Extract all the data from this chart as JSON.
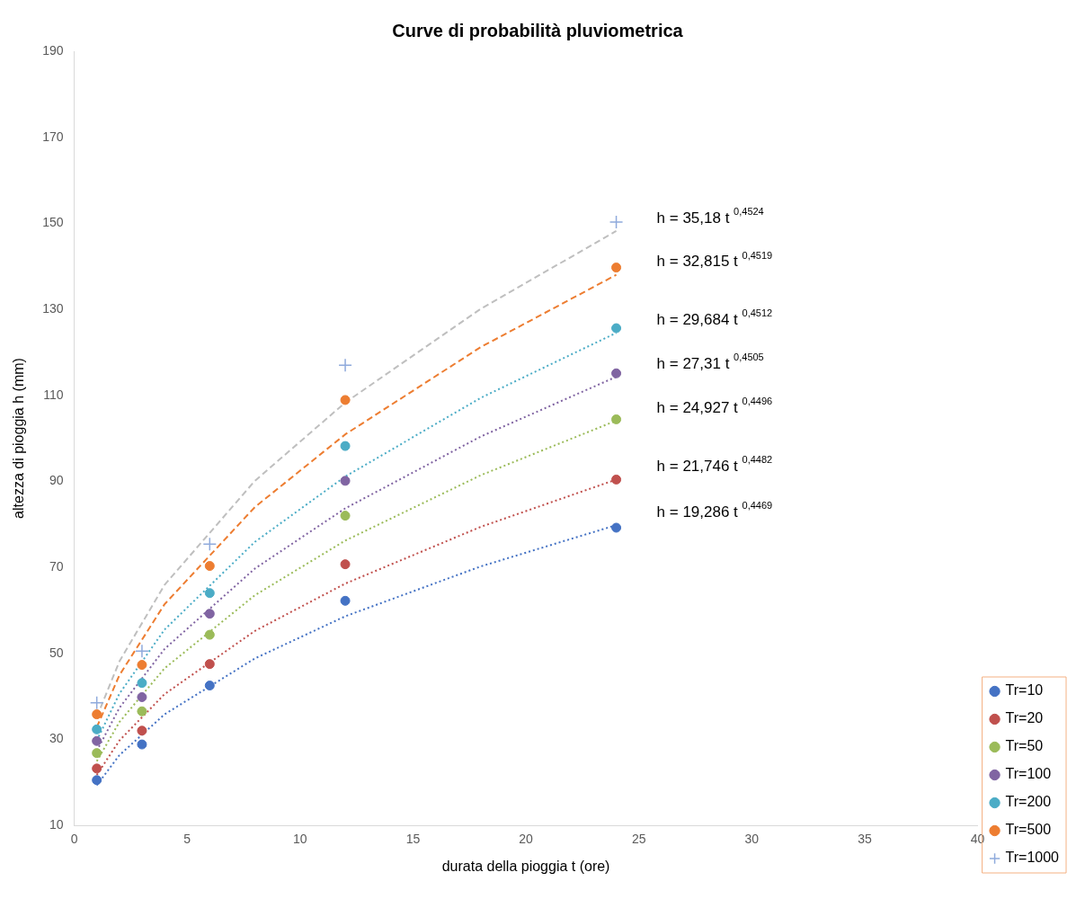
{
  "chart_data": {
    "type": "scatter",
    "title": "Curve di probabilità pluviometrica",
    "xlabel": "durata della pioggia t (ore)",
    "ylabel": "altezza di pioggia h (mm)",
    "x": [
      1,
      3,
      6,
      12,
      24
    ],
    "xlim": [
      0,
      40
    ],
    "xticks": [
      0,
      5,
      10,
      15,
      20,
      25,
      30,
      35,
      40
    ],
    "ylim": [
      10,
      190
    ],
    "yticks": [
      10,
      30,
      50,
      70,
      90,
      110,
      130,
      150,
      170,
      190
    ],
    "grid": false,
    "legend": "bottom right",
    "marker": "circle",
    "series": [
      {
        "name": "Tr=10",
        "color": "#4472c4",
        "values": [
          20.5,
          28.8,
          42.5,
          62.2,
          79.2
        ]
      },
      {
        "name": "Tr=20",
        "color": "#c0504d",
        "values": [
          23.2,
          32.0,
          47.5,
          70.7,
          90.4
        ]
      },
      {
        "name": "Tr=50",
        "color": "#9bbb59",
        "values": [
          26.8,
          36.5,
          54.3,
          82.0,
          104.4
        ]
      },
      {
        "name": "Tr=100",
        "color": "#8064a2",
        "values": [
          29.6,
          39.8,
          59.2,
          90.1,
          115.1
        ]
      },
      {
        "name": "Tr=200",
        "color": "#4bacc6",
        "values": [
          32.3,
          43.1,
          64.0,
          98.2,
          125.6
        ]
      },
      {
        "name": "Tr=500",
        "color": "#ed7d31",
        "values": [
          35.8,
          47.3,
          70.3,
          108.9,
          139.7
        ]
      },
      {
        "name": "Tr=1000",
        "color": "#8faadc",
        "marker": "cross",
        "values": [
          38.5,
          50.5,
          75.4,
          117.0,
          150.3
        ]
      },
      {
        "type": "line",
        "color": "#4472c4",
        "line_style": "dotted",
        "marker": "none",
        "x": [
          1,
          2,
          4,
          8,
          12,
          18,
          24
        ],
        "values": [
          19.3,
          26.3,
          35.8,
          48.8,
          58.6,
          70.2,
          79.8
        ]
      },
      {
        "type": "line",
        "color": "#c0504d",
        "line_style": "dotted",
        "marker": "none",
        "x": [
          1,
          2,
          4,
          8,
          12,
          18,
          24
        ],
        "values": [
          21.7,
          29.7,
          40.5,
          55.2,
          66.2,
          79.4,
          90.4
        ]
      },
      {
        "type": "line",
        "color": "#9bbb59",
        "line_style": "dotted",
        "marker": "none",
        "x": [
          1,
          2,
          4,
          8,
          12,
          18,
          24
        ],
        "values": [
          24.9,
          34.0,
          46.5,
          63.5,
          76.2,
          91.4,
          104.1
        ]
      },
      {
        "type": "line",
        "color": "#8064a2",
        "line_style": "dotted",
        "marker": "none",
        "x": [
          1,
          2,
          4,
          8,
          12,
          18,
          24
        ],
        "values": [
          27.3,
          37.3,
          51.0,
          69.7,
          83.7,
          100.4,
          114.3
        ]
      },
      {
        "type": "line",
        "color": "#4bacc6",
        "line_style": "dotted",
        "marker": "none",
        "x": [
          1,
          2,
          4,
          8,
          12,
          18,
          24
        ],
        "values": [
          29.7,
          40.6,
          55.5,
          75.9,
          91.1,
          109.4,
          124.5
        ]
      },
      {
        "type": "line",
        "color": "#ed7d31",
        "line_style": "dashed",
        "marker": "none",
        "x": [
          1,
          2,
          4,
          8,
          12,
          18,
          24
        ],
        "values": [
          32.8,
          44.9,
          61.4,
          84.0,
          100.9,
          121.2,
          138.0
        ]
      },
      {
        "type": "line",
        "color": "#bfbfbf",
        "line_style": "dashed",
        "marker": "none",
        "x": [
          1,
          2,
          4,
          8,
          12,
          18,
          24
        ],
        "values": [
          35.2,
          48.1,
          65.9,
          90.1,
          108.3,
          130.1,
          148.2
        ]
      }
    ],
    "annotations": [
      "h = 35,18 t $^{0,4524}$",
      "h = 32,815 t $^{0,4519}$",
      "h = 29,684 t $^{0,4512}$",
      "h = 27,31 t $^{0,4505}$",
      "h = 24,927 t $^{0,4496}$",
      "h = 21,746 t $^{0,4482}$",
      "h = 19,286 t $^{0,4469}$"
    ]
  }
}
